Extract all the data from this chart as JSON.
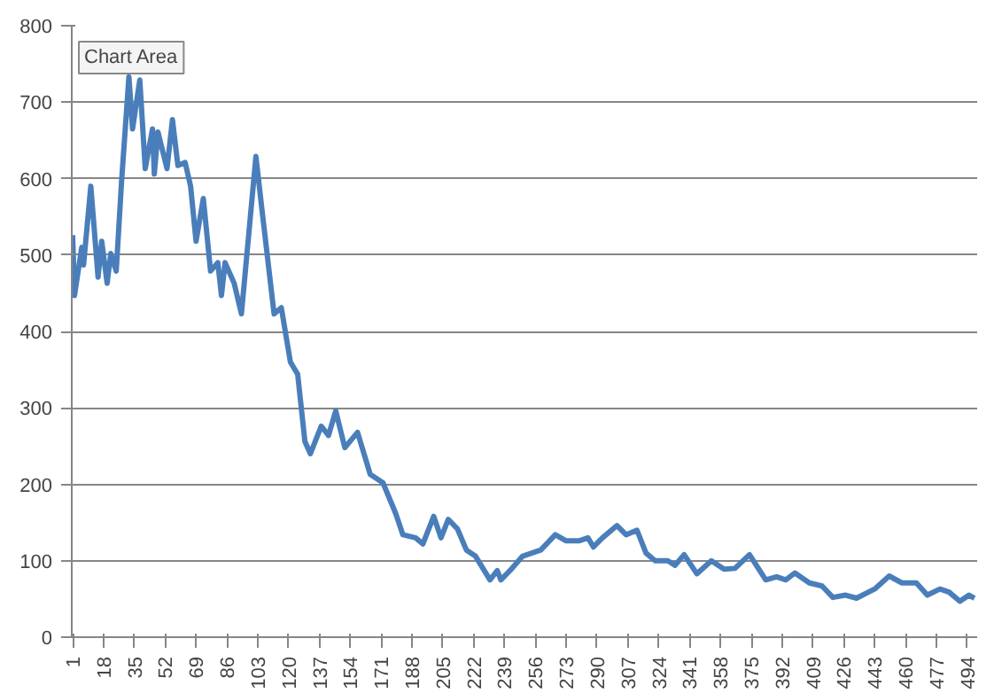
{
  "chart_data": {
    "type": "line",
    "annotations": [
      "Chart Area"
    ],
    "x": [
      1,
      2,
      6,
      7,
      11,
      15,
      17,
      20,
      22,
      25,
      28,
      32,
      34,
      38,
      41,
      45,
      46,
      48,
      53,
      56,
      59,
      63,
      66,
      69,
      73,
      77,
      81,
      83,
      85,
      90,
      94,
      102,
      105,
      112,
      116,
      121,
      125,
      129,
      132,
      138,
      142,
      146,
      151,
      158,
      165,
      172,
      179,
      183,
      190,
      194,
      200,
      204,
      208,
      213,
      218,
      223,
      231,
      235,
      237,
      242,
      249,
      254,
      259,
      267,
      273,
      280,
      285,
      288,
      293,
      301,
      306,
      312,
      317,
      322,
      329,
      333,
      338,
      345,
      353,
      360,
      366,
      374,
      383,
      389,
      394,
      399,
      407,
      414,
      420,
      427,
      433,
      443,
      451,
      458,
      466,
      472,
      479,
      484,
      490,
      495,
      498
    ],
    "series": [
      {
        "color": "#4a7ebb",
        "values": [
          526,
          447,
          510,
          487,
          590,
          471,
          518,
          463,
          502,
          479,
          598,
          733,
          665,
          729,
          613,
          665,
          606,
          661,
          613,
          677,
          617,
          621,
          590,
          518,
          574,
          479,
          490,
          447,
          490,
          463,
          423,
          629,
          566,
          423,
          431,
          360,
          344,
          256,
          240,
          276,
          264,
          296,
          248,
          268,
          213,
          202,
          162,
          134,
          130,
          122,
          158,
          130,
          154,
          142,
          114,
          106,
          75,
          87,
          75,
          87,
          106,
          110,
          114,
          134,
          126,
          126,
          130,
          118,
          130,
          146,
          134,
          140,
          110,
          100,
          100,
          94,
          108,
          83,
          100,
          89,
          90,
          108,
          75,
          79,
          75,
          84,
          71,
          67,
          52,
          55,
          51,
          63,
          80,
          71,
          71,
          55,
          63,
          59,
          47,
          55,
          51
        ]
      }
    ],
    "xlim": [
      0.5,
      499.5
    ],
    "ylim": [
      0,
      800
    ],
    "xticks": [
      1,
      18,
      35,
      52,
      69,
      86,
      103,
      120,
      137,
      154,
      171,
      188,
      205,
      222,
      239,
      256,
      273,
      290,
      307,
      324,
      341,
      358,
      375,
      392,
      409,
      426,
      443,
      460,
      477,
      494
    ],
    "yticks": [
      0,
      100,
      200,
      300,
      400,
      500,
      600,
      700,
      800
    ],
    "grid": "y",
    "marker": "none",
    "line_style": "solid"
  }
}
